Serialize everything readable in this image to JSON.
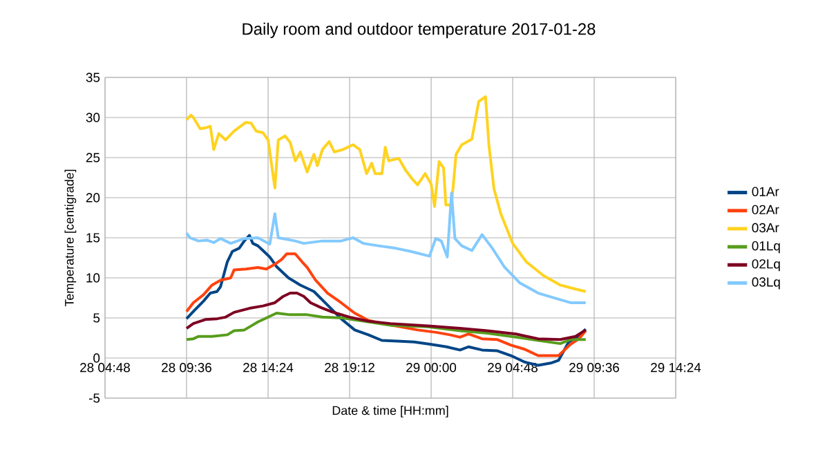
{
  "chart_data": {
    "type": "line",
    "title": "Daily room and outdoor temperature 2017-01-28",
    "xlabel": "Date & time [HH:mm]",
    "ylabel": "Temperature [centigrade]",
    "xlim": [
      "2017-01-28T04:48",
      "2017-01-29T14:24"
    ],
    "xticks": [
      {
        "value": "2017-01-28T04:48",
        "label": "28 04:48"
      },
      {
        "value": "2017-01-28T09:36",
        "label": "28 09:36"
      },
      {
        "value": "2017-01-28T14:24",
        "label": "28 14:24"
      },
      {
        "value": "2017-01-28T19:12",
        "label": "28 19:12"
      },
      {
        "value": "2017-01-29T00:00",
        "label": "29 00:00"
      },
      {
        "value": "2017-01-29T04:48",
        "label": "29 04:48"
      },
      {
        "value": "2017-01-29T09:36",
        "label": "29 09:36"
      },
      {
        "value": "2017-01-29T14:24",
        "label": "29 14:24"
      }
    ],
    "ylim": [
      -5,
      35
    ],
    "yticks": [
      -5,
      0,
      5,
      10,
      15,
      20,
      25,
      30,
      35
    ],
    "grid": true,
    "legend": "right",
    "marker": "none",
    "line_style": "solid",
    "series": [
      {
        "name": "01Ar",
        "color": "#004586",
        "x": [
          "2017-01-28T09:36",
          "2017-01-28T10:00",
          "2017-01-28T10:36",
          "2017-01-28T11:00",
          "2017-01-28T11:24",
          "2017-01-28T11:36",
          "2017-01-28T12:00",
          "2017-01-28T12:18",
          "2017-01-28T12:42",
          "2017-01-28T13:00",
          "2017-01-28T13:18",
          "2017-01-28T13:30",
          "2017-01-28T13:48",
          "2017-01-28T14:06",
          "2017-01-28T14:30",
          "2017-01-28T14:54",
          "2017-01-28T15:36",
          "2017-01-28T16:18",
          "2017-01-28T17:06",
          "2017-01-28T17:54",
          "2017-01-28T18:42",
          "2017-01-28T19:30",
          "2017-01-28T20:18",
          "2017-01-28T21:06",
          "2017-01-28T22:12",
          "2017-01-28T23:00",
          "2017-01-29T00:00",
          "2017-01-29T00:54",
          "2017-01-29T01:42",
          "2017-01-29T02:12",
          "2017-01-29T03:00",
          "2017-01-29T03:54",
          "2017-01-29T04:42",
          "2017-01-29T05:30",
          "2017-01-29T06:18",
          "2017-01-29T07:06",
          "2017-01-29T07:30",
          "2017-01-29T08:06",
          "2017-01-29T08:36",
          "2017-01-29T09:06"
        ],
        "values": [
          4.9,
          5.8,
          7.1,
          8.1,
          8.3,
          8.9,
          12.0,
          13.3,
          13.7,
          14.6,
          15.3,
          14.3,
          14.0,
          13.4,
          12.6,
          11.4,
          10.0,
          9.1,
          8.3,
          6.6,
          4.9,
          3.5,
          2.9,
          2.2,
          2.1,
          2.0,
          1.7,
          1.4,
          1.0,
          1.4,
          1.0,
          0.9,
          0.3,
          -0.5,
          -0.9,
          -0.6,
          -0.3,
          2.0,
          2.6,
          3.6
        ]
      },
      {
        "name": "02Ar",
        "color": "#ff420e",
        "x": [
          "2017-01-28T09:36",
          "2017-01-28T10:00",
          "2017-01-28T10:36",
          "2017-01-28T11:06",
          "2017-01-28T11:36",
          "2017-01-28T12:12",
          "2017-01-28T12:24",
          "2017-01-28T13:06",
          "2017-01-28T13:48",
          "2017-01-28T14:18",
          "2017-01-28T14:48",
          "2017-01-28T15:12",
          "2017-01-28T15:30",
          "2017-01-28T16:00",
          "2017-01-28T16:24",
          "2017-01-28T16:42",
          "2017-01-28T17:12",
          "2017-01-28T17:54",
          "2017-01-28T18:42",
          "2017-01-28T19:30",
          "2017-01-28T20:18",
          "2017-01-28T21:06",
          "2017-01-28T22:12",
          "2017-01-28T23:12",
          "2017-01-29T00:18",
          "2017-01-29T01:06",
          "2017-01-29T01:42",
          "2017-01-29T02:12",
          "2017-01-29T03:00",
          "2017-01-29T03:54",
          "2017-01-29T04:42",
          "2017-01-29T05:30",
          "2017-01-29T06:18",
          "2017-01-29T07:30",
          "2017-01-29T08:12",
          "2017-01-29T08:42",
          "2017-01-29T09:06"
        ],
        "values": [
          5.8,
          6.9,
          7.9,
          9.1,
          9.7,
          10.0,
          11.0,
          11.1,
          11.3,
          11.1,
          11.7,
          12.3,
          13.0,
          13.0,
          12.0,
          11.3,
          9.7,
          8.1,
          6.9,
          5.6,
          4.7,
          4.3,
          3.9,
          3.5,
          3.2,
          2.9,
          2.6,
          3.0,
          2.4,
          2.3,
          1.6,
          1.1,
          0.3,
          0.3,
          1.7,
          2.4,
          3.4
        ]
      },
      {
        "name": "03Ar",
        "color": "#ffd320",
        "x": [
          "2017-01-28T09:36",
          "2017-01-28T09:51",
          "2017-01-28T10:00",
          "2017-01-28T10:24",
          "2017-01-28T10:42",
          "2017-01-28T11:00",
          "2017-01-28T11:12",
          "2017-01-28T11:30",
          "2017-01-28T11:54",
          "2017-01-28T12:24",
          "2017-01-28T13:06",
          "2017-01-28T13:24",
          "2017-01-28T13:42",
          "2017-01-28T14:06",
          "2017-01-28T14:24",
          "2017-01-28T14:48",
          "2017-01-28T15:00",
          "2017-01-28T15:24",
          "2017-01-28T15:42",
          "2017-01-28T16:00",
          "2017-01-28T16:18",
          "2017-01-28T16:42",
          "2017-01-28T17:06",
          "2017-01-28T17:18",
          "2017-01-28T17:36",
          "2017-01-28T18:00",
          "2017-01-28T18:18",
          "2017-01-28T18:48",
          "2017-01-28T19:24",
          "2017-01-28T19:48",
          "2017-01-28T20:12",
          "2017-01-28T20:30",
          "2017-01-28T20:42",
          "2017-01-28T21:06",
          "2017-01-28T21:18",
          "2017-01-28T21:30",
          "2017-01-28T22:06",
          "2017-01-28T22:30",
          "2017-01-28T22:54",
          "2017-01-28T23:12",
          "2017-01-28T23:39",
          "2017-01-29T00:00",
          "2017-01-29T00:12",
          "2017-01-29T00:28",
          "2017-01-29T00:44",
          "2017-01-29T00:52",
          "2017-01-29T01:12",
          "2017-01-29T01:28",
          "2017-01-29T01:48",
          "2017-01-29T02:24",
          "2017-01-29T02:48",
          "2017-01-29T03:12",
          "2017-01-29T03:24",
          "2017-01-29T03:42",
          "2017-01-29T04:06",
          "2017-01-29T04:48",
          "2017-01-29T05:36",
          "2017-01-29T06:36",
          "2017-01-29T07:36",
          "2017-01-29T08:30",
          "2017-01-29T09:06"
        ],
        "values": [
          29.7,
          30.3,
          30.0,
          28.6,
          28.7,
          28.9,
          26.0,
          28.0,
          27.2,
          28.3,
          29.4,
          29.3,
          28.3,
          28.1,
          27.2,
          21.2,
          27.2,
          27.7,
          26.9,
          24.6,
          25.7,
          23.2,
          25.4,
          24.0,
          26.0,
          27.0,
          25.7,
          26.0,
          26.6,
          26.0,
          23.0,
          24.3,
          23.0,
          23.0,
          26.3,
          24.6,
          24.9,
          23.4,
          22.3,
          21.6,
          23.0,
          21.7,
          18.9,
          24.5,
          23.7,
          19.1,
          19.1,
          25.4,
          26.6,
          27.3,
          32.0,
          32.6,
          26.6,
          21.1,
          18.0,
          14.3,
          12.0,
          10.3,
          9.1,
          8.6,
          8.3
        ]
      },
      {
        "name": "01Lq",
        "color": "#579d1c",
        "x": [
          "2017-01-28T09:36",
          "2017-01-28T10:00",
          "2017-01-28T10:18",
          "2017-01-28T11:06",
          "2017-01-28T12:00",
          "2017-01-28T12:24",
          "2017-01-28T13:00",
          "2017-01-28T13:24",
          "2017-01-28T13:48",
          "2017-01-28T14:18",
          "2017-01-28T14:54",
          "2017-01-28T15:42",
          "2017-01-28T16:42",
          "2017-01-28T17:36",
          "2017-01-28T18:48",
          "2017-01-28T20:00",
          "2017-01-28T21:36",
          "2017-01-28T23:48",
          "2017-01-29T01:42",
          "2017-01-29T03:18",
          "2017-01-29T05:00",
          "2017-01-29T06:18",
          "2017-01-29T07:36",
          "2017-01-29T08:12",
          "2017-01-29T09:06"
        ],
        "values": [
          2.3,
          2.4,
          2.7,
          2.7,
          2.9,
          3.4,
          3.5,
          4.0,
          4.5,
          5.0,
          5.6,
          5.4,
          5.4,
          5.1,
          5.0,
          4.6,
          4.1,
          3.9,
          3.4,
          3.1,
          2.6,
          2.2,
          1.8,
          2.3,
          2.3
        ]
      },
      {
        "name": "02Lq",
        "color": "#7e0021",
        "x": [
          "2017-01-28T09:36",
          "2017-01-28T10:00",
          "2017-01-28T10:42",
          "2017-01-28T11:24",
          "2017-01-28T11:54",
          "2017-01-28T12:24",
          "2017-01-28T13:18",
          "2017-01-28T14:06",
          "2017-01-28T14:48",
          "2017-01-28T15:18",
          "2017-01-28T15:42",
          "2017-01-28T16:06",
          "2017-01-28T16:30",
          "2017-01-28T16:54",
          "2017-01-28T17:30",
          "2017-01-28T18:06",
          "2017-01-28T19:12",
          "2017-01-28T20:18",
          "2017-01-28T21:36",
          "2017-01-28T23:48",
          "2017-01-29T01:42",
          "2017-01-29T03:18",
          "2017-01-29T05:00",
          "2017-01-29T06:18",
          "2017-01-29T07:36",
          "2017-01-29T08:30",
          "2017-01-29T09:06"
        ],
        "values": [
          3.7,
          4.3,
          4.8,
          4.9,
          5.1,
          5.7,
          6.2,
          6.5,
          6.9,
          7.7,
          8.1,
          8.1,
          7.7,
          6.9,
          6.3,
          5.8,
          5.1,
          4.6,
          4.3,
          4.0,
          3.7,
          3.4,
          3.0,
          2.4,
          2.3,
          2.7,
          3.5
        ]
      },
      {
        "name": "03Lq",
        "color": "#83caff",
        "x": [
          "2017-01-28T09:36",
          "2017-01-28T09:48",
          "2017-01-28T10:18",
          "2017-01-28T10:48",
          "2017-01-28T11:12",
          "2017-01-28T11:36",
          "2017-01-28T12:12",
          "2017-01-28T13:00",
          "2017-01-28T13:48",
          "2017-01-28T14:30",
          "2017-01-28T14:48",
          "2017-01-28T15:00",
          "2017-01-28T16:00",
          "2017-01-28T16:30",
          "2017-01-28T17:36",
          "2017-01-28T18:42",
          "2017-01-28T19:24",
          "2017-01-28T20:00",
          "2017-01-28T20:54",
          "2017-01-28T21:54",
          "2017-01-28T22:48",
          "2017-01-28T23:54",
          "2017-01-29T00:16",
          "2017-01-29T00:36",
          "2017-01-29T00:57",
          "2017-01-29T01:12",
          "2017-01-29T01:24",
          "2017-01-29T01:48",
          "2017-01-29T02:24",
          "2017-01-29T03:00",
          "2017-01-29T03:36",
          "2017-01-29T04:18",
          "2017-01-29T05:12",
          "2017-01-29T06:18",
          "2017-01-29T07:24",
          "2017-01-29T08:12",
          "2017-01-29T09:06"
        ],
        "values": [
          15.6,
          15.0,
          14.6,
          14.7,
          14.4,
          14.9,
          14.3,
          14.9,
          15.0,
          14.2,
          18.0,
          15.0,
          14.6,
          14.3,
          14.6,
          14.6,
          15.0,
          14.3,
          14.0,
          13.7,
          13.3,
          12.7,
          14.9,
          14.6,
          12.6,
          20.6,
          14.9,
          14.0,
          13.4,
          15.4,
          13.7,
          11.4,
          9.4,
          8.1,
          7.4,
          6.9,
          6.9
        ]
      }
    ]
  }
}
